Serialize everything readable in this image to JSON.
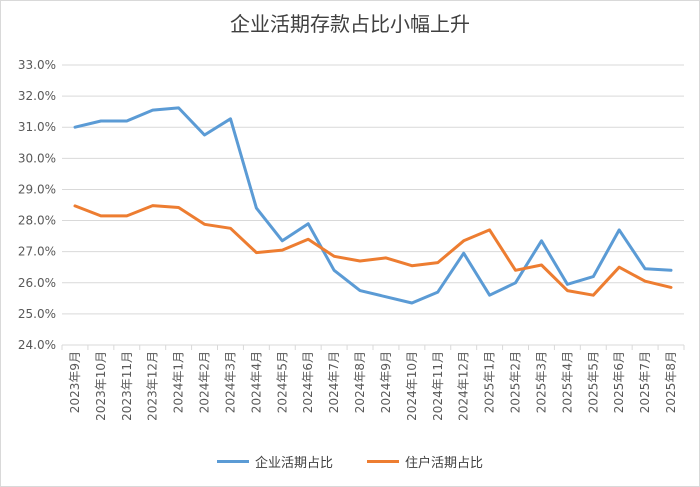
{
  "chart_data": {
    "type": "line",
    "title": "企业活期存款占比小幅上升",
    "xlabel": "",
    "ylabel": "",
    "ylim": [
      24.0,
      33.0
    ],
    "yticks": [
      "24.0%",
      "25.0%",
      "26.0%",
      "27.0%",
      "28.0%",
      "29.0%",
      "30.0%",
      "31.0%",
      "32.0%",
      "33.0%"
    ],
    "grid": true,
    "legend_position": "bottom",
    "categories": [
      "2023年9月",
      "2023年10月",
      "2023年11月",
      "2023年12月",
      "2024年1月",
      "2024年2月",
      "2024年3月",
      "2024年4月",
      "2024年5月",
      "2024年6月",
      "2024年7月",
      "2024年8月",
      "2024年9月",
      "2024年10月",
      "2024年11月",
      "2024年12月",
      "2025年1月",
      "2025年2月",
      "2025年3月",
      "2025年4月",
      "2025年5月",
      "2025年6月",
      "2025年7月",
      "2025年8月"
    ],
    "series": [
      {
        "name": "企业活期占比",
        "color": "#5b9bd5",
        "values": [
          31.0,
          31.2,
          31.2,
          31.55,
          31.62,
          30.75,
          31.27,
          28.4,
          27.35,
          27.9,
          26.4,
          25.75,
          25.55,
          25.35,
          25.7,
          26.95,
          25.6,
          26.0,
          27.35,
          25.95,
          26.2,
          27.7,
          26.45,
          26.4
        ]
      },
      {
        "name": "住户活期占比",
        "color": "#ed7d31",
        "values": [
          28.47,
          28.15,
          28.15,
          28.48,
          28.42,
          27.88,
          27.75,
          26.97,
          27.05,
          27.4,
          26.85,
          26.7,
          26.8,
          26.55,
          26.65,
          27.35,
          27.7,
          26.4,
          26.57,
          25.75,
          25.6,
          26.5,
          26.05,
          25.85
        ]
      }
    ]
  }
}
